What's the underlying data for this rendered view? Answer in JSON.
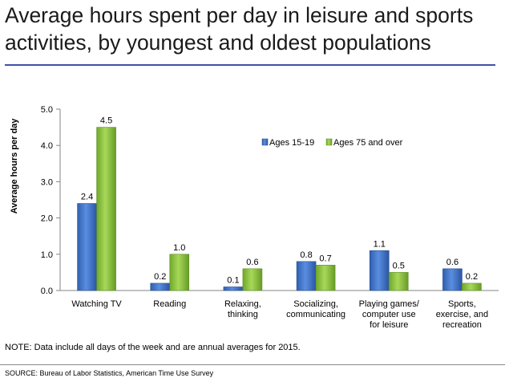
{
  "header": {
    "title": "Average hours spent per day in leisure and sports activities, by youngest and oldest populations"
  },
  "chart_data": {
    "type": "bar",
    "title": "",
    "ylabel": "Average hours per day",
    "xlabel": "",
    "ylim": [
      0,
      5
    ],
    "yticks": [
      "0.0",
      "1.0",
      "2.0",
      "3.0",
      "4.0",
      "5.0"
    ],
    "grid": false,
    "legend_position": "top-right",
    "categories": [
      [
        "Watching TV"
      ],
      [
        "Reading"
      ],
      [
        "Relaxing,",
        "thinking"
      ],
      [
        "Socializing,",
        "communicating"
      ],
      [
        "Playing games/",
        "computer use",
        "for leisure"
      ],
      [
        "Sports,",
        "exercise, and",
        "recreation"
      ]
    ],
    "series": [
      {
        "name": "Ages 15-19",
        "values": [
          2.4,
          0.2,
          0.1,
          0.8,
          1.1,
          0.6
        ],
        "color": "#3a6fc4"
      },
      {
        "name": "Ages 75 and over",
        "values": [
          4.5,
          1.0,
          0.6,
          0.7,
          0.5,
          0.2
        ],
        "color": "#8cc63f"
      }
    ]
  },
  "footer": {
    "note": "NOTE: Data include all days of the week and are annual averages for  2015.",
    "source": "SOURCE: Bureau of Labor Statistics, American Time Use Survey"
  }
}
